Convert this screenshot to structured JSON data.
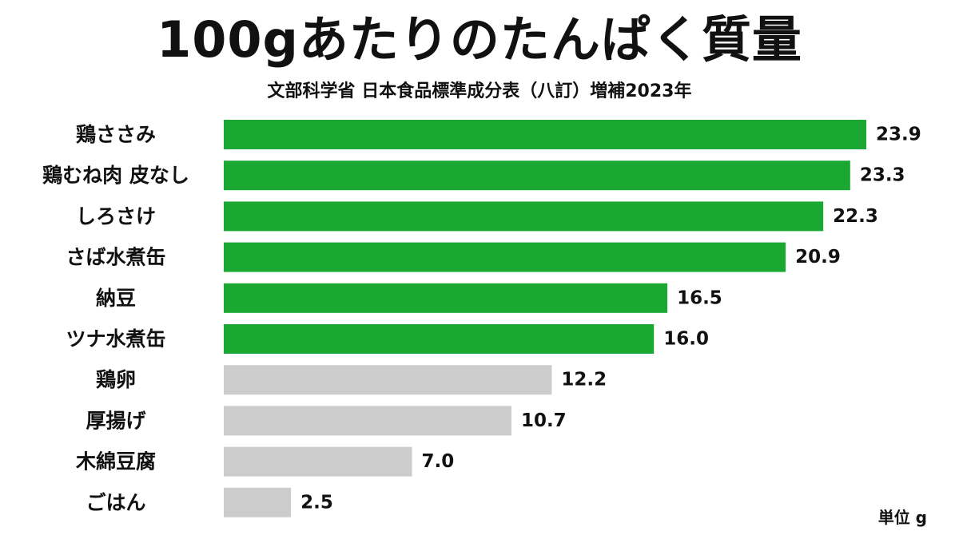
{
  "title": "100gあたりのたんぱく質量",
  "subtitle": "文部科学省 日本食品標準成分表（八訂）増補2023年",
  "unit_label": "単位 g",
  "colors": {
    "highlight": "#1aa832",
    "muted": "#cccccc",
    "text": "#111111"
  },
  "chart_data": {
    "type": "bar",
    "orientation": "horizontal",
    "categories": [
      "鶏ささみ",
      "鶏むね肉 皮なし",
      "しろさけ",
      "さば水煮缶",
      "納豆",
      "ツナ水煮缶",
      "鶏卵",
      "厚揚げ",
      "木綿豆腐",
      "ごはん"
    ],
    "values": [
      23.9,
      23.3,
      22.3,
      20.9,
      16.5,
      16.0,
      12.2,
      10.7,
      7.0,
      2.5
    ],
    "value_labels": [
      "23.9",
      "23.3",
      "22.3",
      "20.9",
      "16.5",
      "16.0",
      "12.2",
      "10.7",
      "7.0",
      "2.5"
    ],
    "highlighted": [
      true,
      true,
      true,
      true,
      true,
      true,
      false,
      false,
      false,
      false
    ],
    "title": "100gあたりのたんぱく質量",
    "subtitle": "文部科学省 日本食品標準成分表（八訂）増補2023年",
    "xlabel": "",
    "ylabel": "",
    "unit": "単位 g",
    "xlim": [
      0,
      23.9
    ],
    "grid": false,
    "legend": "none"
  }
}
